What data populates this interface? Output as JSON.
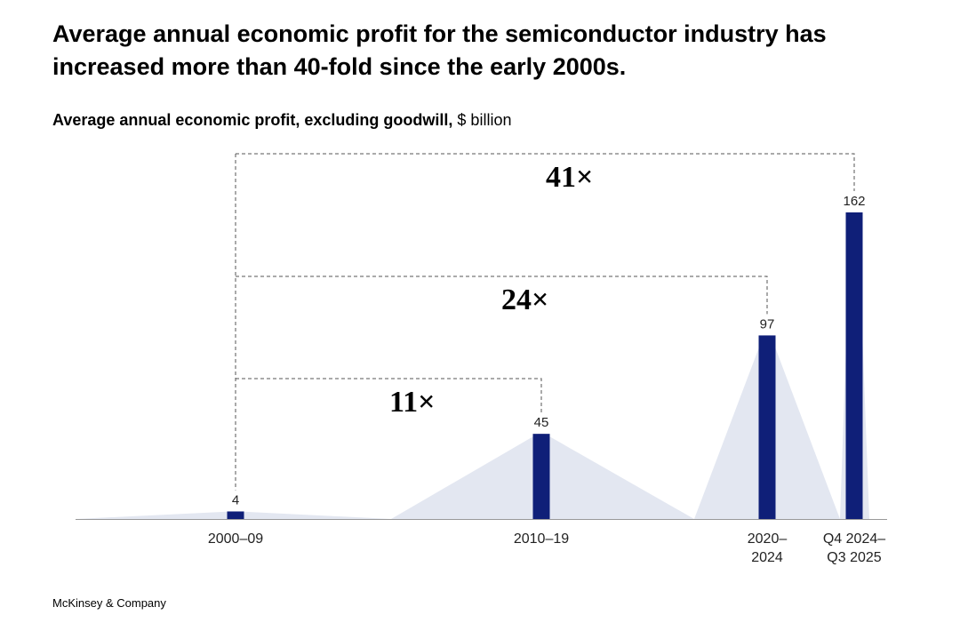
{
  "headline": "Average annual economic profit for the semiconductor industry has increased more than 40-fold since the early 2000s.",
  "subtitle": {
    "bold": "Average annual economic profit, excluding goodwill,",
    "unit": "$ billion"
  },
  "footer": "McKinsey & Company",
  "colors": {
    "bar": "#0f1f78",
    "shade": "#e3e7f1",
    "axis": "#999999",
    "bracket": "#555555"
  },
  "chart_data": {
    "type": "bar",
    "title": "Average annual economic profit, excluding goodwill",
    "ylabel": "$ billion",
    "xlabel": "",
    "ylim": [
      0,
      170
    ],
    "categories": [
      {
        "lines": [
          "2000–09"
        ]
      },
      {
        "lines": [
          "2010–19"
        ]
      },
      {
        "lines": [
          "2020–",
          "2024"
        ]
      },
      {
        "lines": [
          "Q4 2024–",
          "Q3 2025"
        ]
      }
    ],
    "values": [
      4,
      45,
      97,
      162
    ],
    "annotations": [
      {
        "label": "11×",
        "from_index": 0,
        "to_index": 1
      },
      {
        "label": "24×",
        "from_index": 0,
        "to_index": 2
      },
      {
        "label": "41×",
        "from_index": 0,
        "to_index": 3
      }
    ]
  }
}
